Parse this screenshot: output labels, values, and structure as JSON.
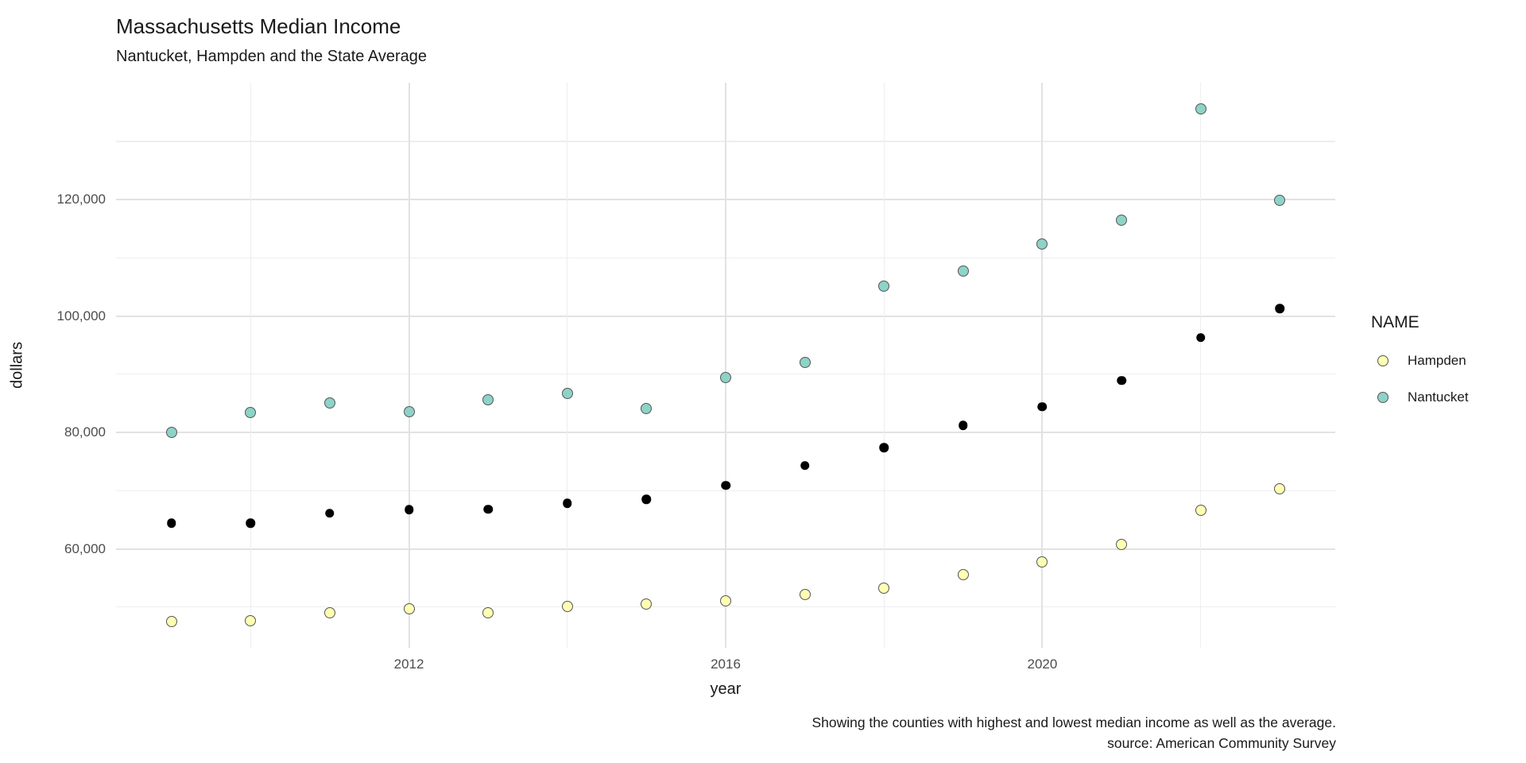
{
  "title": "Massachusetts Median Income",
  "subtitle": "Nantucket, Hampden and the State Average",
  "caption": {
    "line1": "Showing the counties with highest and lowest median income as well as the average.",
    "line2": "source: American Community Survey"
  },
  "legend": {
    "title": "NAME",
    "items": [
      {
        "label": "Hampden",
        "fill": "#FFFFB3",
        "stroke": "#555555"
      },
      {
        "label": "Nantucket",
        "fill": "#8DD3C7",
        "stroke": "#555555"
      }
    ]
  },
  "chart_data": {
    "type": "scatter",
    "title": "Massachusetts Median Income",
    "subtitle": "Nantucket, Hampden and the State Average",
    "xlabel": "year",
    "ylabel": "dollars",
    "grid": true,
    "legend_position": "right",
    "x": [
      2009,
      2010,
      2011,
      2012,
      2013,
      2014,
      2015,
      2016,
      2017,
      2018,
      2019,
      2020,
      2021,
      2022,
      2023
    ],
    "xlim": [
      2008.3,
      2023.7
    ],
    "ylim": [
      43000,
      140100
    ],
    "x_ticks": [
      2012,
      2016,
      2020
    ],
    "x_tick_labels": [
      "2012",
      "2016",
      "2020"
    ],
    "x_minor": [
      2010,
      2014,
      2018,
      2022
    ],
    "y_ticks": [
      60000,
      80000,
      100000,
      120000
    ],
    "y_tick_labels": [
      "60,000",
      "80,000",
      "100,000",
      "120,000"
    ],
    "y_minor": [
      50000,
      70000,
      90000,
      110000,
      130000
    ],
    "series": [
      {
        "name": "Hampden",
        "shape": "outlined",
        "fill": "#FFFFB3",
        "stroke": "#555555",
        "values": [
          47500,
          47600,
          49000,
          49700,
          49000,
          50100,
          50500,
          51000,
          52200,
          53300,
          55500,
          57700,
          60800,
          66600,
          70300
        ]
      },
      {
        "name": "Nantucket",
        "shape": "outlined",
        "fill": "#8DD3C7",
        "stroke": "#555555",
        "values": [
          80000,
          83400,
          85100,
          83500,
          85600,
          86700,
          84100,
          89500,
          92000,
          105200,
          107800,
          112400,
          116500,
          135600,
          119900
        ]
      },
      {
        "name": "State Average",
        "shape": "solid",
        "fill": "#000000",
        "stroke": "#000000",
        "values": [
          64400,
          64400,
          66100,
          66700,
          66800,
          67800,
          68500,
          70900,
          74300,
          77400,
          81200,
          84400,
          88900,
          96300,
          101300
        ]
      }
    ]
  }
}
